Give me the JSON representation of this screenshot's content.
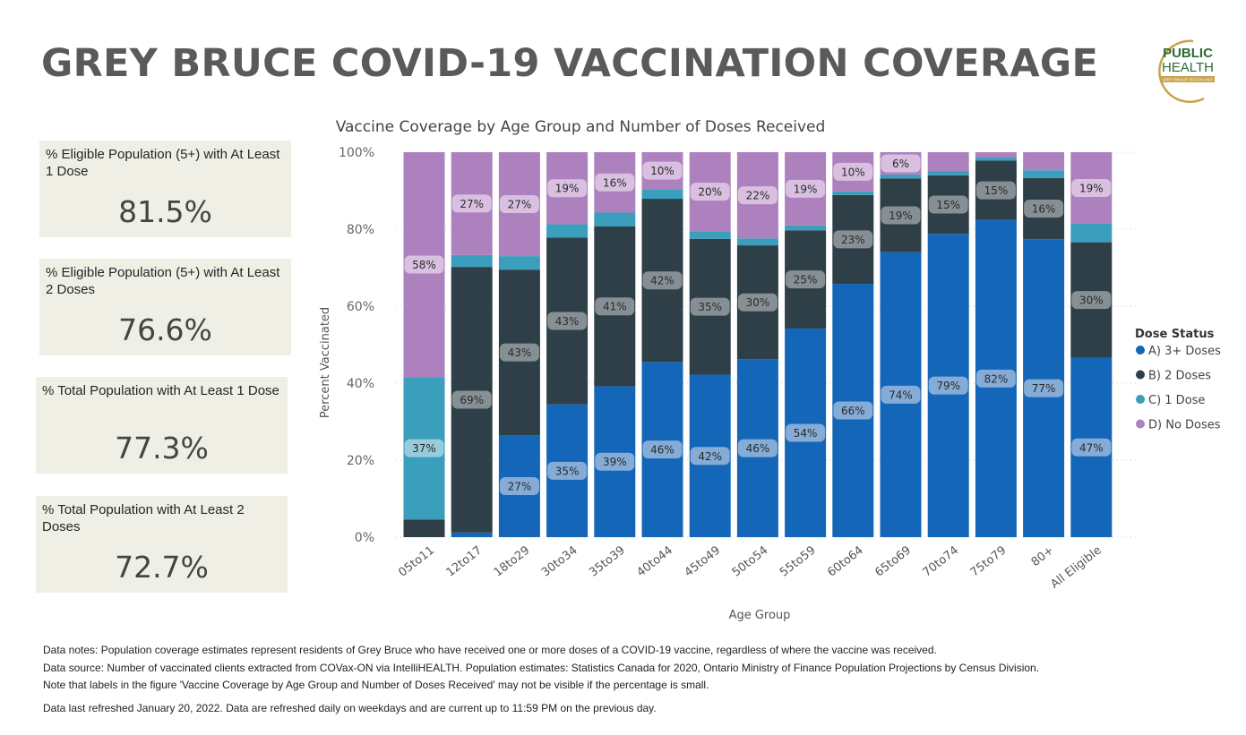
{
  "header": {
    "title": "GREY BRUCE COVID-19 VACCINATION COVERAGE",
    "logo_text_1": "PUBLIC",
    "logo_text_2": "HEALTH",
    "logo_subtext": "GREY BRUCE HEALTH UNIT"
  },
  "kpis": [
    {
      "label": "% Eligible Population (5+) with At Least 1 Dose",
      "value": "81.5%"
    },
    {
      "label": "% Eligible Population (5+) with At Least 2 Doses",
      "value": "76.6%"
    },
    {
      "label": "% Total Population with At Least 1 Dose",
      "value": "77.3%"
    },
    {
      "label": "% Total Population with At Least 2 Doses",
      "value": "72.7%"
    }
  ],
  "chart_data": {
    "type": "bar",
    "stacked": true,
    "title": "Vaccine Coverage by Age Group and Number of Doses Received",
    "xlabel": "Age Group",
    "ylabel": "Percent Vaccinated",
    "ylim": [
      0,
      100
    ],
    "yticks": [
      "0%",
      "20%",
      "40%",
      "60%",
      "80%",
      "100%"
    ],
    "grid": true,
    "legend": {
      "title": "Dose Status",
      "position": "right"
    },
    "categories": [
      "05to11",
      "12to17",
      "18to29",
      "30to34",
      "35to39",
      "40to44",
      "45to49",
      "50to54",
      "55to59",
      "60to64",
      "65to69",
      "70to74",
      "75to79",
      "80+",
      "All Eligible"
    ],
    "series": [
      {
        "name": "A) 3+ Doses",
        "color": "#1366b8",
        "values": [
          0,
          1.2,
          26.5,
          34.5,
          39.2,
          45.5,
          42.2,
          46.2,
          54.2,
          65.8,
          74.0,
          78.8,
          82.4,
          77.4,
          46.6
        ],
        "labels": [
          "",
          "",
          "27%",
          "35%",
          "39%",
          "46%",
          "42%",
          "46%",
          "54%",
          "66%",
          "74%",
          "79%",
          "82%",
          "77%",
          "47%"
        ]
      },
      {
        "name": "B) 2 Doses",
        "color": "#2f3f47",
        "values": [
          4.6,
          69.0,
          43.0,
          43.3,
          41.5,
          42.4,
          35.3,
          29.6,
          25.5,
          23.1,
          19.2,
          15.2,
          15.4,
          15.9,
          30.0
        ],
        "labels": [
          "",
          "69%",
          "43%",
          "43%",
          "41%",
          "42%",
          "35%",
          "30%",
          "25%",
          "23%",
          "19%",
          "15%",
          "15%",
          "16%",
          "30%"
        ]
      },
      {
        "name": "C) 1 Dose",
        "color": "#3b9ebd",
        "values": [
          37.0,
          3.1,
          3.5,
          3.5,
          3.6,
          2.5,
          2.0,
          1.8,
          1.3,
          0.9,
          1.0,
          1.0,
          0.8,
          2.0,
          4.8
        ],
        "labels": [
          "37%",
          "",
          "",
          "",
          "",
          "",
          "",
          "",
          "",
          "",
          "",
          "",
          "",
          "",
          ""
        ]
      },
      {
        "name": "D) No Doses",
        "color": "#ad81bd",
        "values": [
          58.4,
          26.7,
          27.0,
          18.7,
          15.7,
          9.6,
          20.5,
          22.4,
          19.0,
          10.2,
          5.8,
          5.0,
          1.4,
          4.7,
          18.6
        ],
        "labels": [
          "58%",
          "27%",
          "27%",
          "19%",
          "16%",
          "10%",
          "20%",
          "22%",
          "19%",
          "10%",
          "6%",
          "",
          "",
          "",
          "19%"
        ]
      }
    ]
  },
  "notes": {
    "line1": "Data notes: Population coverage estimates represent residents of Grey Bruce who have received one or more doses of a COVID-19 vaccine, regardless of where the vaccine was received.",
    "line2": "Data source: Number of vaccinated clients extracted from COVax-ON via IntelliHEALTH. Population estimates: Statistics Canada for 2020, Ontario Ministry of Finance Population Projections by Census Division.",
    "line3": "Note that labels in the figure 'Vaccine Coverage by Age Group and Number of Doses Received' may not be visible if the percentage is small.",
    "line4": "Data last refreshed January 20, 2022. Data are refreshed daily on weekdays and are current up to 11:59 PM on the previous day."
  }
}
